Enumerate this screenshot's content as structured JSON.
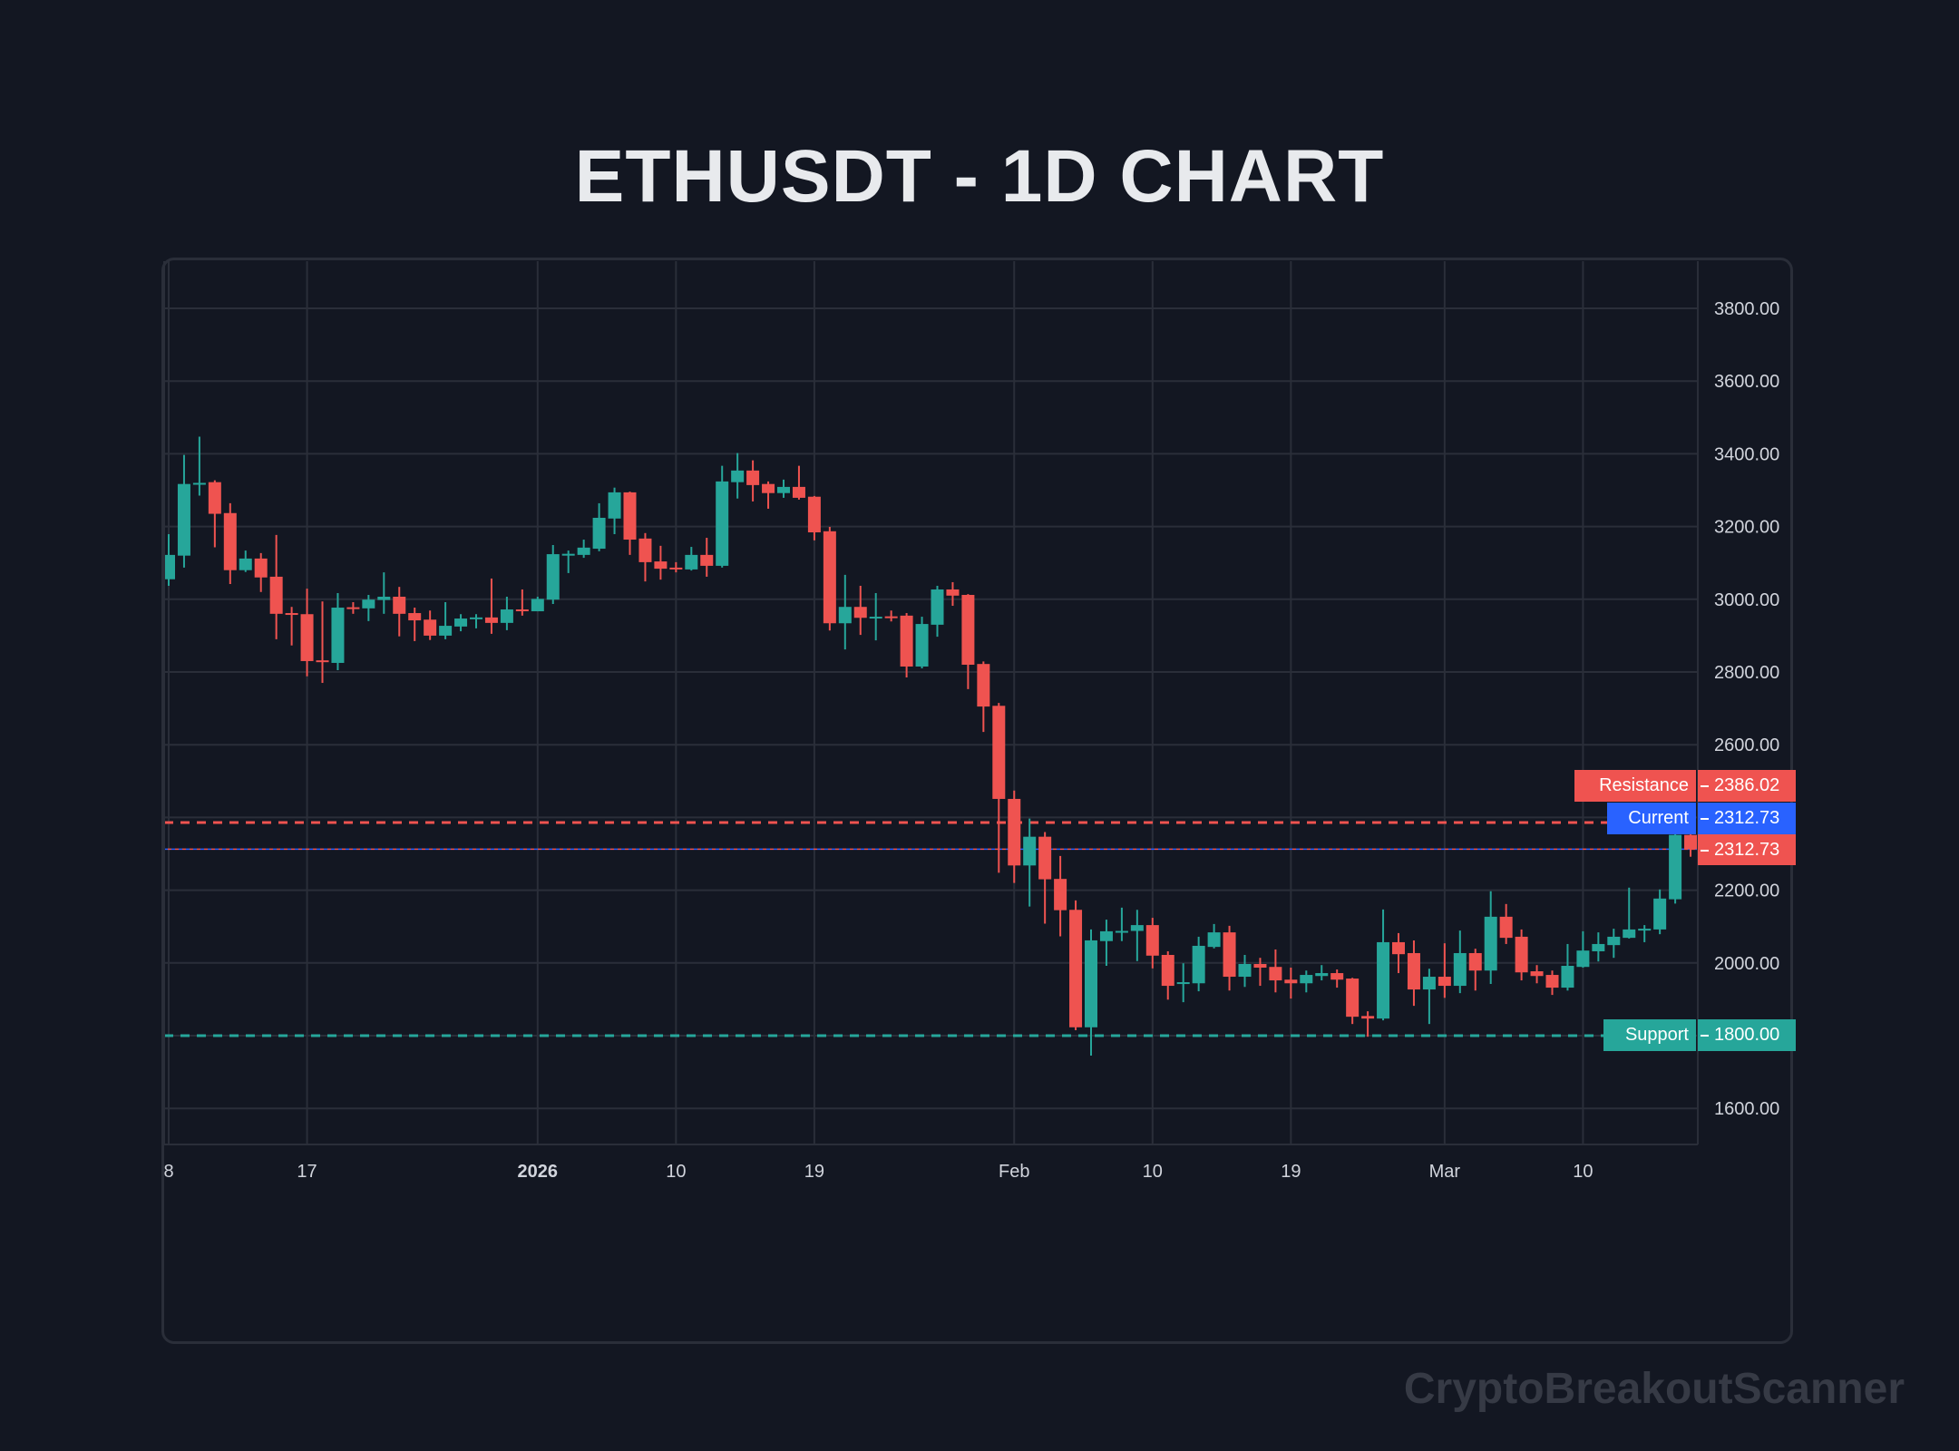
{
  "title": "ETHUSDT - 1D CHART",
  "watermark": "CryptoBreakoutScanner",
  "colors": {
    "background": "#131722",
    "grid": "#2a2e39",
    "up": "#26a69a",
    "down": "#ef5350",
    "current": "#2962ff",
    "text": "#d1d4dc"
  },
  "levels": {
    "resistance": {
      "label": "Resistance",
      "value": "2386.02",
      "price": 2386.02,
      "color": "#ef5350"
    },
    "current": {
      "label": "Current",
      "value": "2312.73",
      "price": 2312.73,
      "color": "#2962ff"
    },
    "last_price": {
      "value": "2312.73",
      "price": 2312.73,
      "color": "#ef5350"
    },
    "support": {
      "label": "Support",
      "value": "1800.00",
      "price": 1800.0,
      "color": "#26a69a"
    }
  },
  "chart_data": {
    "type": "candlestick",
    "symbol": "ETHUSDT",
    "interval": "1D",
    "title": "ETHUSDT - 1D CHART",
    "ylim": [
      1500,
      3930
    ],
    "grid": true,
    "y_axis_position": "right",
    "y_ticks": [
      1600,
      1800,
      2000,
      2200,
      2400,
      2600,
      2800,
      3000,
      3200,
      3400,
      3600,
      3800
    ],
    "y_tick_labels": [
      "1600.00",
      "1800.00",
      "2000.00",
      "2200.00",
      "2600.00",
      "2800.00",
      "3000.00",
      "3200.00",
      "3400.00",
      "3600.00",
      "3800.00"
    ],
    "x_ticks": [
      {
        "date": "2025-12-08",
        "label": "8"
      },
      {
        "date": "2025-12-17",
        "label": "17"
      },
      {
        "date": "2026-01-01",
        "label": "2026",
        "bold": true
      },
      {
        "date": "2026-01-10",
        "label": "10"
      },
      {
        "date": "2026-01-19",
        "label": "19"
      },
      {
        "date": "2026-02-01",
        "label": "Feb"
      },
      {
        "date": "2026-02-10",
        "label": "10"
      },
      {
        "date": "2026-02-19",
        "label": "19"
      },
      {
        "date": "2026-03-01",
        "label": "Mar"
      },
      {
        "date": "2026-03-10",
        "label": "10"
      }
    ],
    "columns": [
      "date",
      "open",
      "high",
      "low",
      "close"
    ],
    "candles": [
      [
        "2025-12-08",
        3055,
        3179,
        3037,
        3122
      ],
      [
        "2025-12-09",
        3120,
        3397,
        3087,
        3317
      ],
      [
        "2025-12-10",
        3317,
        3447,
        3285,
        3320
      ],
      [
        "2025-12-11",
        3322,
        3327,
        3143,
        3235
      ],
      [
        "2025-12-12",
        3237,
        3264,
        3042,
        3080
      ],
      [
        "2025-12-13",
        3080,
        3134,
        3075,
        3112
      ],
      [
        "2025-12-14",
        3112,
        3127,
        3020,
        3060
      ],
      [
        "2025-12-15",
        3062,
        3177,
        2890,
        2960
      ],
      [
        "2025-12-16",
        2962,
        2979,
        2873,
        2958
      ],
      [
        "2025-12-17",
        2959,
        3029,
        2788,
        2830
      ],
      [
        "2025-12-18",
        2832,
        2994,
        2770,
        2828
      ],
      [
        "2025-12-19",
        2825,
        3017,
        2805,
        2977
      ],
      [
        "2025-12-20",
        2978,
        2992,
        2960,
        2975
      ],
      [
        "2025-12-21",
        2975,
        3012,
        2940,
        2999
      ],
      [
        "2025-12-22",
        2998,
        3074,
        2960,
        3007
      ],
      [
        "2025-12-23",
        3007,
        3034,
        2898,
        2960
      ],
      [
        "2025-12-24",
        2962,
        2977,
        2885,
        2942
      ],
      [
        "2025-12-25",
        2944,
        2969,
        2888,
        2900
      ],
      [
        "2025-12-26",
        2900,
        2992,
        2890,
        2927
      ],
      [
        "2025-12-27",
        2925,
        2959,
        2912,
        2947
      ],
      [
        "2025-12-28",
        2947,
        2959,
        2920,
        2950
      ],
      [
        "2025-12-29",
        2950,
        3057,
        2905,
        2935
      ],
      [
        "2025-12-30",
        2935,
        3007,
        2915,
        2972
      ],
      [
        "2025-12-31",
        2972,
        3027,
        2955,
        2969
      ],
      [
        "2026-01-01",
        2967,
        3007,
        2967,
        3001
      ],
      [
        "2026-01-02",
        2999,
        3149,
        2987,
        3124
      ],
      [
        "2026-01-03",
        3122,
        3134,
        3072,
        3125
      ],
      [
        "2026-01-04",
        3122,
        3164,
        3114,
        3142
      ],
      [
        "2026-01-05",
        3139,
        3264,
        3132,
        3224
      ],
      [
        "2026-01-06",
        3222,
        3307,
        3179,
        3294
      ],
      [
        "2026-01-07",
        3294,
        3296,
        3122,
        3164
      ],
      [
        "2026-01-08",
        3167,
        3182,
        3049,
        3102
      ],
      [
        "2026-01-09",
        3104,
        3147,
        3054,
        3084
      ],
      [
        "2026-01-10",
        3087,
        3102,
        3074,
        3085
      ],
      [
        "2026-01-11",
        3082,
        3144,
        3079,
        3122
      ],
      [
        "2026-01-12",
        3122,
        3169,
        3062,
        3092
      ],
      [
        "2026-01-13",
        3092,
        3367,
        3087,
        3324
      ],
      [
        "2026-01-14",
        3322,
        3402,
        3277,
        3354
      ],
      [
        "2026-01-15",
        3354,
        3382,
        3269,
        3314
      ],
      [
        "2026-01-16",
        3317,
        3324,
        3249,
        3292
      ],
      [
        "2026-01-17",
        3292,
        3329,
        3279,
        3309
      ],
      [
        "2026-01-18",
        3309,
        3367,
        3274,
        3279
      ],
      [
        "2026-01-19",
        3282,
        3284,
        3162,
        3184
      ],
      [
        "2026-01-20",
        3187,
        3199,
        2914,
        2934
      ],
      [
        "2026-01-21",
        2934,
        3067,
        2862,
        2979
      ],
      [
        "2026-01-22",
        2979,
        3037,
        2902,
        2949
      ],
      [
        "2026-01-23",
        2949,
        3017,
        2887,
        2952
      ],
      [
        "2026-01-24",
        2953,
        2969,
        2939,
        2950
      ],
      [
        "2026-01-25",
        2955,
        2962,
        2785,
        2815
      ],
      [
        "2026-01-26",
        2815,
        2952,
        2810,
        2932
      ],
      [
        "2026-01-27",
        2930,
        3037,
        2897,
        3027
      ],
      [
        "2026-01-28",
        3027,
        3047,
        2982,
        3010
      ],
      [
        "2026-01-29",
        3012,
        3014,
        2753,
        2820
      ],
      [
        "2026-01-30",
        2822,
        2829,
        2635,
        2705
      ],
      [
        "2026-01-31",
        2707,
        2715,
        2248,
        2451
      ],
      [
        "2026-02-01",
        2451,
        2474,
        2220,
        2268
      ],
      [
        "2026-02-02",
        2268,
        2397,
        2155,
        2347
      ],
      [
        "2026-02-03",
        2347,
        2360,
        2108,
        2230
      ],
      [
        "2026-02-04",
        2231,
        2294,
        2073,
        2145
      ],
      [
        "2026-02-05",
        2146,
        2172,
        1815,
        1823
      ],
      [
        "2026-02-06",
        1823,
        2092,
        1745,
        2062
      ],
      [
        "2026-02-07",
        2060,
        2119,
        1992,
        2087
      ],
      [
        "2026-02-08",
        2087,
        2152,
        2060,
        2088
      ],
      [
        "2026-02-09",
        2088,
        2146,
        2005,
        2104
      ],
      [
        "2026-02-10",
        2104,
        2124,
        1985,
        2020
      ],
      [
        "2026-02-11",
        2022,
        2032,
        1899,
        1937
      ],
      [
        "2026-02-12",
        1942,
        1999,
        1892,
        1947
      ],
      [
        "2026-02-13",
        1944,
        2072,
        1922,
        2047
      ],
      [
        "2026-02-14",
        2044,
        2107,
        2040,
        2084
      ],
      [
        "2026-02-15",
        2084,
        2102,
        1924,
        1962
      ],
      [
        "2026-02-16",
        1962,
        2022,
        1934,
        1997
      ],
      [
        "2026-02-17",
        1997,
        2014,
        1937,
        1987
      ],
      [
        "2026-02-18",
        1989,
        2037,
        1919,
        1952
      ],
      [
        "2026-02-19",
        1954,
        1987,
        1902,
        1944
      ],
      [
        "2026-02-20",
        1944,
        1979,
        1919,
        1967
      ],
      [
        "2026-02-21",
        1964,
        1994,
        1952,
        1972
      ],
      [
        "2026-02-22",
        1972,
        1982,
        1932,
        1954
      ],
      [
        "2026-02-23",
        1957,
        1959,
        1832,
        1852
      ],
      [
        "2026-02-24",
        1854,
        1867,
        1797,
        1847
      ],
      [
        "2026-02-25",
        1847,
        2147,
        1842,
        2057
      ],
      [
        "2026-02-26",
        2057,
        2082,
        1972,
        2024
      ],
      [
        "2026-02-27",
        2027,
        2062,
        1882,
        1927
      ],
      [
        "2026-02-28",
        1927,
        1984,
        1832,
        1962
      ],
      [
        "2026-03-01",
        1962,
        2054,
        1904,
        1937
      ],
      [
        "2026-03-02",
        1937,
        2089,
        1917,
        2027
      ],
      [
        "2026-03-03",
        2027,
        2039,
        1924,
        1979
      ],
      [
        "2026-03-04",
        1979,
        2197,
        1942,
        2127
      ],
      [
        "2026-03-05",
        2127,
        2162,
        2052,
        2069
      ],
      [
        "2026-03-06",
        2072,
        2092,
        1952,
        1974
      ],
      [
        "2026-03-07",
        1977,
        1994,
        1944,
        1964
      ],
      [
        "2026-03-08",
        1967,
        1979,
        1912,
        1932
      ],
      [
        "2026-03-09",
        1932,
        2052,
        1924,
        1992
      ],
      [
        "2026-03-10",
        1989,
        2087,
        1987,
        2034
      ],
      [
        "2026-03-11",
        2032,
        2084,
        2004,
        2052
      ],
      [
        "2026-03-12",
        2049,
        2094,
        2014,
        2072
      ],
      [
        "2026-03-13",
        2069,
        2207,
        2067,
        2092
      ],
      [
        "2026-03-14",
        2092,
        2104,
        2057,
        2094
      ],
      [
        "2026-03-15",
        2092,
        2202,
        2079,
        2177
      ],
      [
        "2026-03-16",
        2175,
        2384,
        2163,
        2352
      ],
      [
        "2026-03-17",
        2352,
        2377,
        2292,
        2312.73
      ]
    ]
  }
}
